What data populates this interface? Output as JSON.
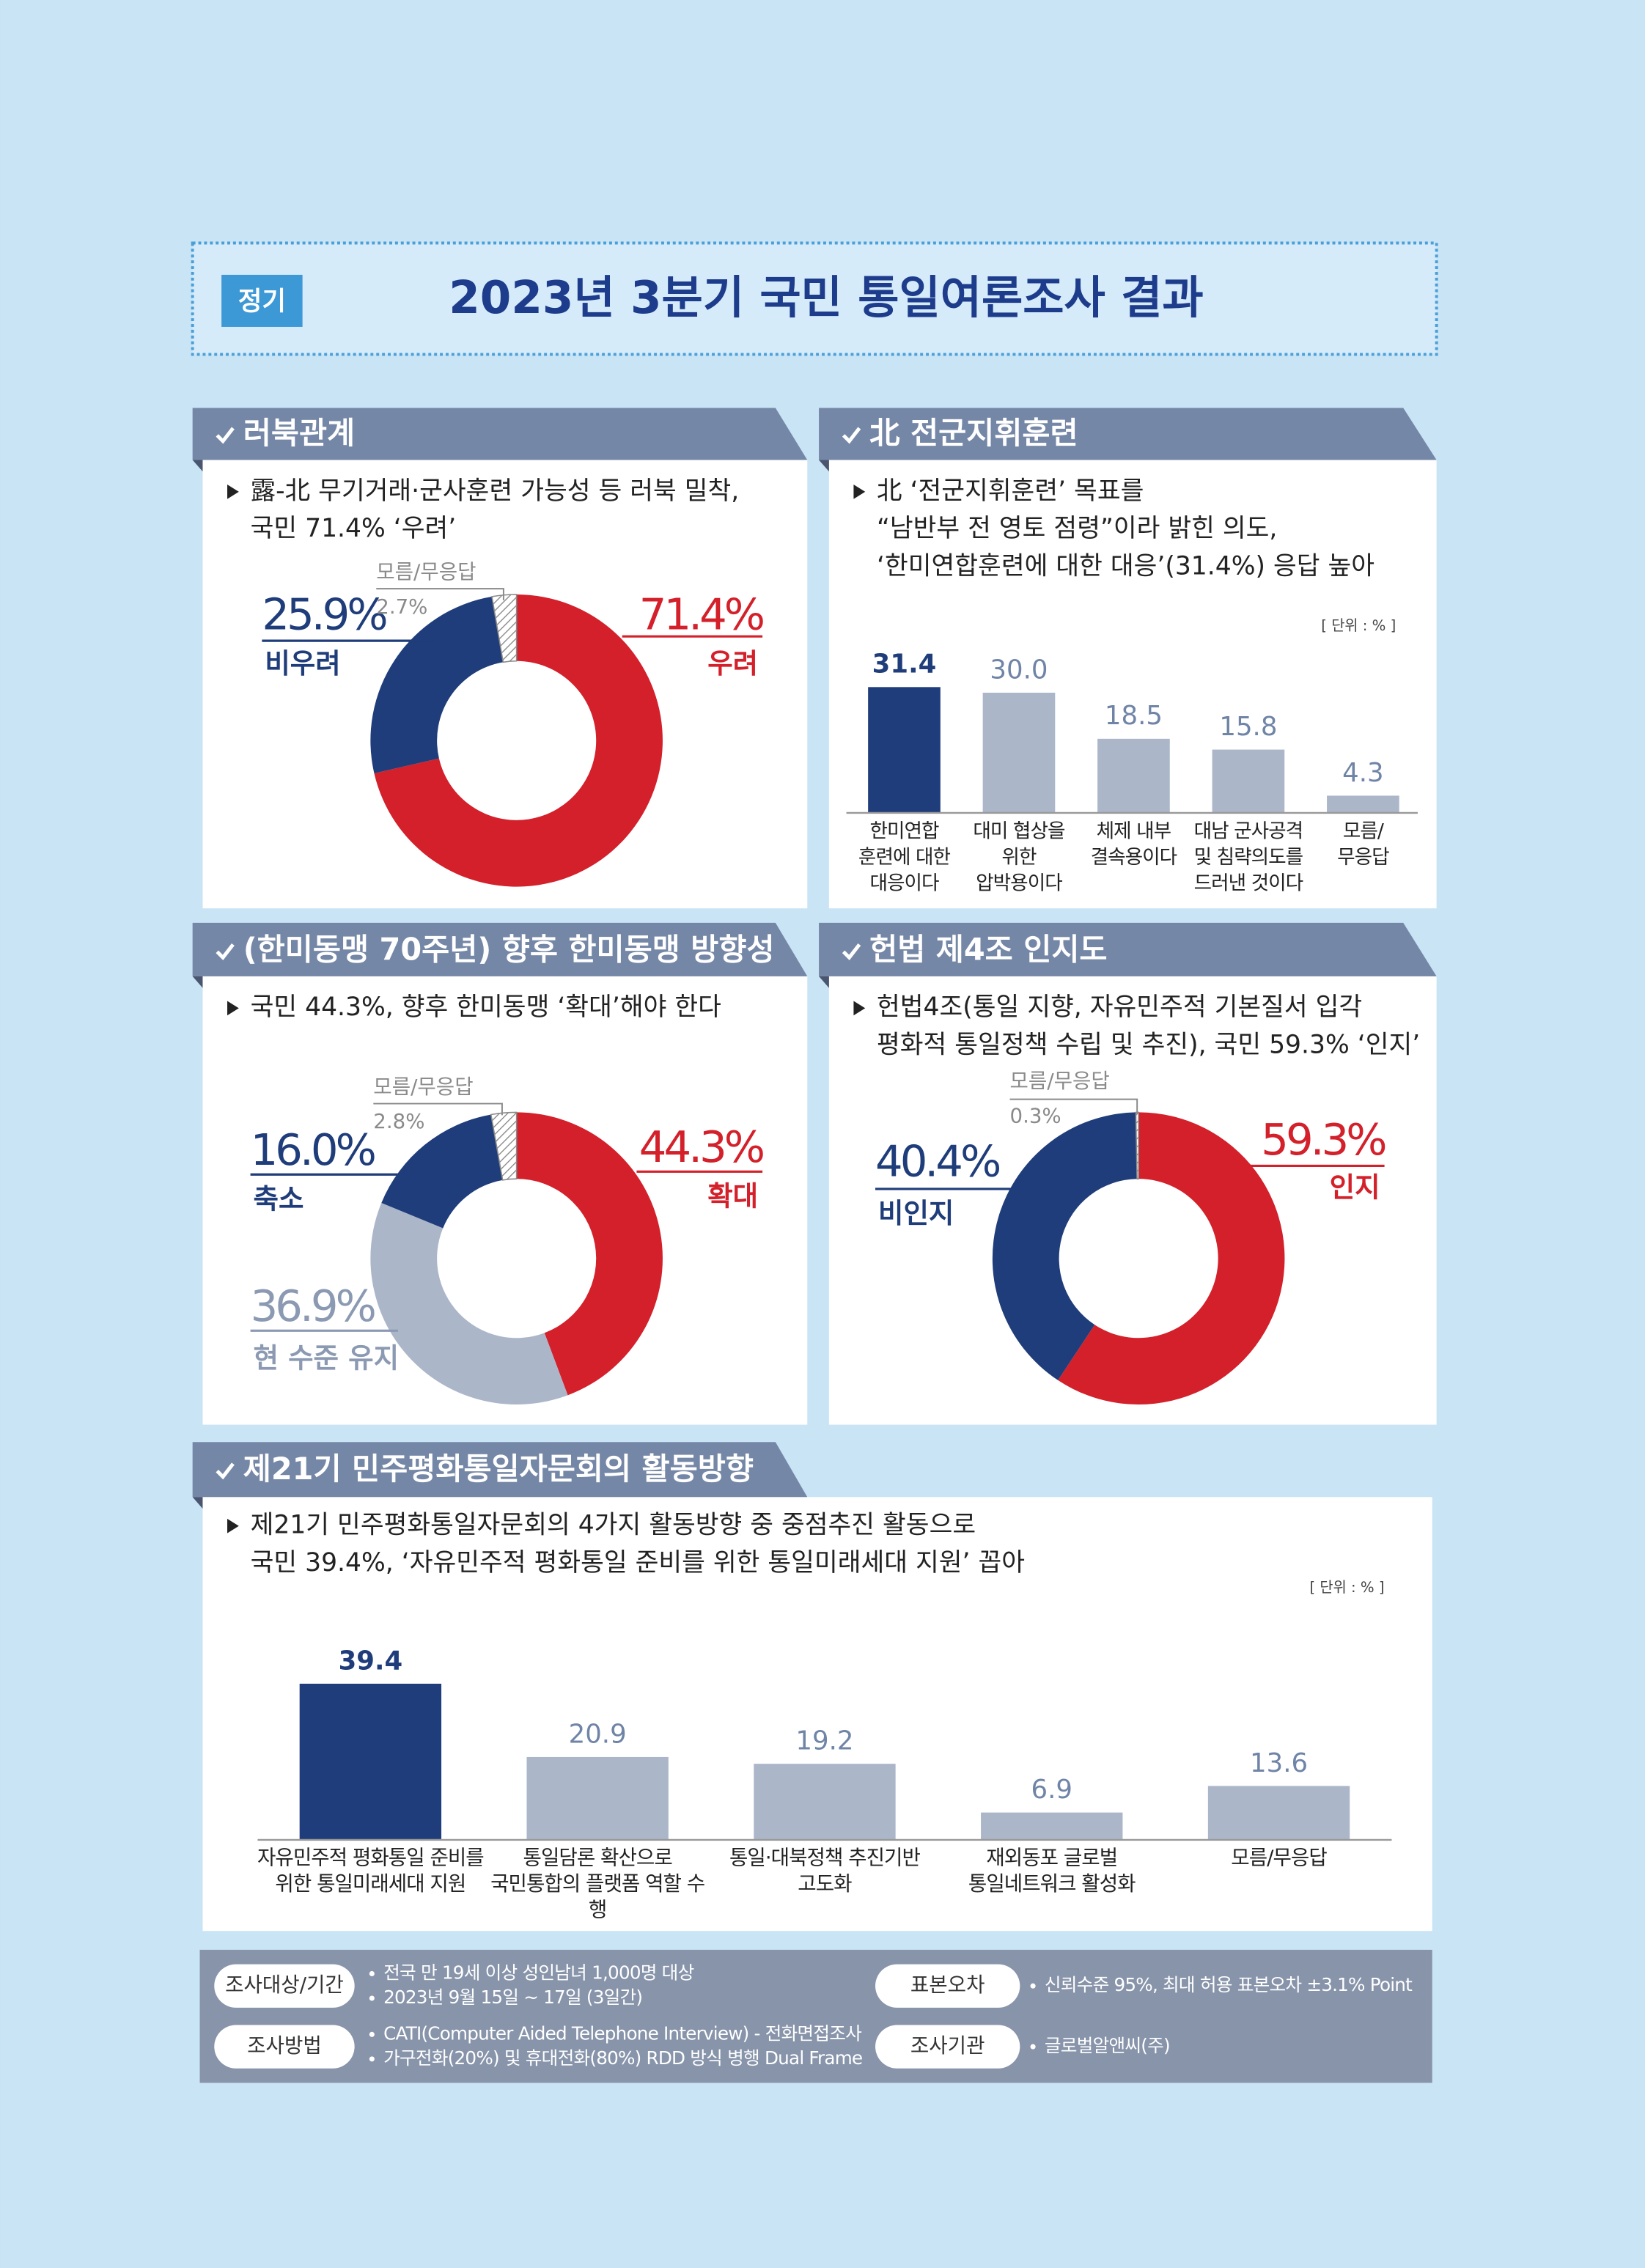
{
  "header": {
    "tag": "정기",
    "title": "2023년 3분기 국민 통일여론조사 결과"
  },
  "chart_data": [
    {
      "type": "donut",
      "title": "러북관계",
      "subtitle": "露-北 무기거래·군사훈련 가능성 등 러북 밀착,\n국민 71.4% ‘우려’",
      "categories": [
        "우려",
        "비우려",
        "모름/무응답"
      ],
      "values": [
        71.4,
        25.9,
        2.7
      ],
      "value_labels": [
        "71.4%",
        "25.9%",
        "2.7%"
      ],
      "colors": [
        "#d3202a",
        "#1f3d7a",
        "hatched"
      ]
    },
    {
      "type": "bar",
      "title": "北 전군지휘훈련",
      "subtitle": "北 ‘전군지휘훈련’ 목표를\n“남반부 전 영토 점령”이라 밝힌 의도,\n‘한미연합훈련에 대한 대응’(31.4%) 응답 높아",
      "unit": "[ 단위 : % ]",
      "categories": [
        "한미연합\n훈련에 대한\n대응이다",
        "대미 협상을\n위한\n압박용이다",
        "체제 내부\n결속용이다",
        "대남 군사공격\n및 침략의도를\n드러낸 것이다",
        "모름/\n무응답"
      ],
      "values": [
        31.4,
        30.0,
        18.5,
        15.8,
        4.3
      ],
      "value_labels": [
        "31.4",
        "30.0",
        "18.5",
        "15.8",
        "4.3"
      ],
      "colors": [
        "#1f3d7a",
        "#abb7c9",
        "#abb7c9",
        "#abb7c9",
        "#abb7c9"
      ]
    },
    {
      "type": "donut",
      "title": "(한미동맹 70주년) 향후 한미동맹 방향성",
      "subtitle": "국민 44.3%, 향후 한미동맹 ‘확대’해야 한다",
      "categories": [
        "확대",
        "현 수준 유지",
        "축소",
        "모름/무응답"
      ],
      "values": [
        44.3,
        36.9,
        16.0,
        2.8
      ],
      "value_labels": [
        "44.3%",
        "36.9%",
        "16.0%",
        "2.8%"
      ],
      "colors": [
        "#d3202a",
        "#abb7c9",
        "#1f3d7a",
        "hatched"
      ]
    },
    {
      "type": "donut",
      "title": "헌법 제4조 인지도",
      "subtitle": "헌법4조(통일 지향, 자유민주적 기본질서 입각\n평화적 통일정책 수립 및 추진), 국민 59.3% ‘인지’",
      "categories": [
        "인지",
        "비인지",
        "모름/무응답"
      ],
      "values": [
        59.3,
        40.4,
        0.3
      ],
      "value_labels": [
        "59.3%",
        "40.4%",
        "0.3%"
      ],
      "colors": [
        "#d3202a",
        "#1f3d7a",
        "hatched"
      ]
    },
    {
      "type": "bar",
      "title": "제21기 민주평화통일자문회의 활동방향",
      "subtitle": "제21기 민주평화통일자문회의 4가지 활동방향 중 중점추진 활동으로\n국민 39.4%, ‘자유민주적 평화통일 준비를 위한 통일미래세대 지원’ 꼽아",
      "unit": "[ 단위 : % ]",
      "categories": [
        "자유민주적 평화통일 준비를\n위한 통일미래세대 지원",
        "통일담론 확산으로\n국민통합의 플랫폼 역할 수행",
        "통일·대북정책 추진기반\n고도화",
        "재외동포 글로벌\n통일네트워크 활성화",
        "모름/무응답"
      ],
      "values": [
        39.4,
        20.9,
        19.2,
        6.9,
        13.6
      ],
      "value_labels": [
        "39.4",
        "20.9",
        "19.2",
        "6.9",
        "13.6"
      ],
      "colors": [
        "#1f3d7a",
        "#abb7c9",
        "#abb7c9",
        "#abb7c9",
        "#abb7c9"
      ]
    }
  ],
  "footer": {
    "items": [
      {
        "label": "조사대상/기간",
        "lines": [
          "전국 만 19세 이상 성인남녀 1,000명 대상",
          "2023년 9월 15일 ~ 17일 (3일간)"
        ]
      },
      {
        "label": "조사방법",
        "lines": [
          "CATI(Computer Aided Telephone Interview) - 전화면접조사",
          "가구전화(20%) 및 휴대전화(80%) RDD 방식 병행 Dual Frame"
        ]
      },
      {
        "label": "표본오차",
        "lines": [
          "신뢰수준 95%, 최대 허용 표본오차 ±3.1% Point"
        ]
      },
      {
        "label": "조사기관",
        "lines": [
          "글로벌알앤씨(주)"
        ]
      }
    ]
  }
}
